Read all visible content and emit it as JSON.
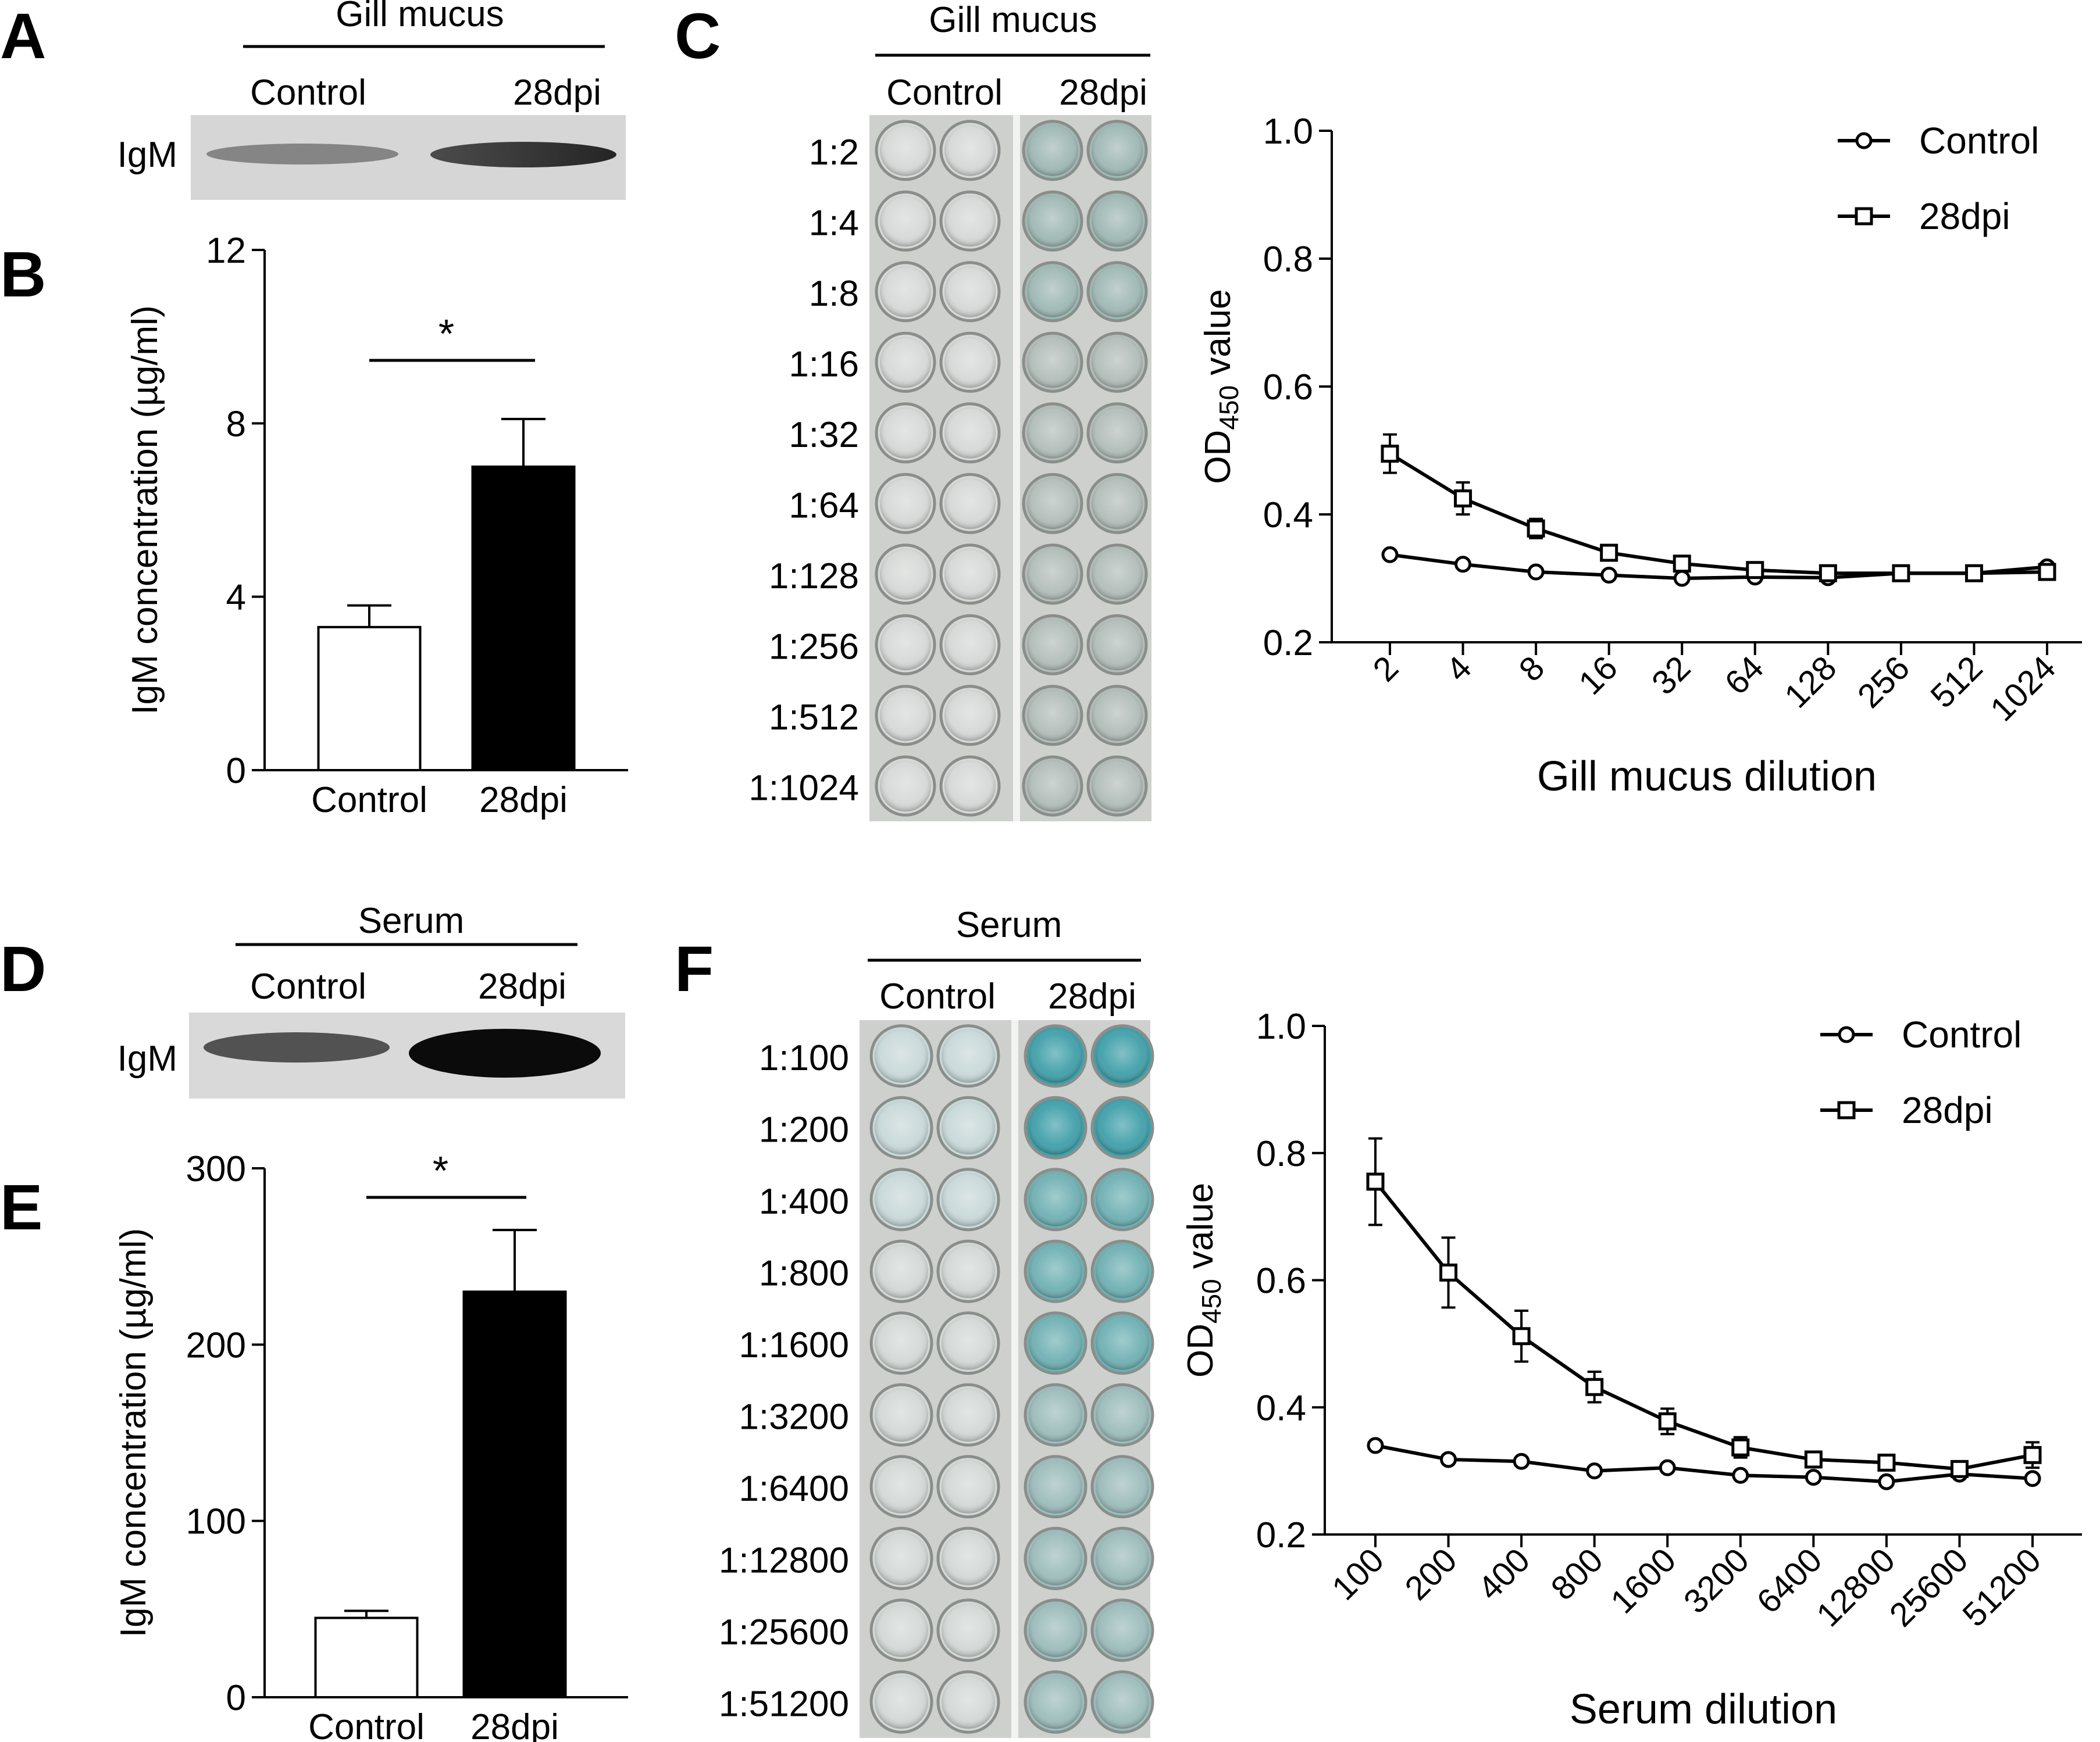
{
  "colors": {
    "ink": "#000000",
    "control_bar": "#ffffff",
    "dpi_bar": "#000000",
    "blot_bg": "#d9d9d9",
    "plate_bg": "#cfd2cf",
    "well_clear": "#dadcda",
    "well_blue_strong": "#3a9ea8",
    "well_blue_light": "#8fb9b9"
  },
  "panels": {
    "A": {
      "letter": "A",
      "header": "Gill mucus",
      "col_labels": [
        "Control",
        "28dpi"
      ],
      "row_label": "IgM"
    },
    "D": {
      "letter": "D",
      "header": "Serum",
      "col_labels": [
        "Control",
        "28dpi"
      ],
      "row_label": "IgM"
    },
    "C_plate": {
      "letter": "C",
      "header": "Gill mucus",
      "col_labels": [
        "Control",
        "28dpi"
      ],
      "row_labels": [
        "1:2",
        "1:4",
        "1:8",
        "1:16",
        "1:32",
        "1:64",
        "1:128",
        "1:256",
        "1:512",
        "1:1024"
      ],
      "icon": "elisa-plate-icon"
    },
    "F_plate": {
      "letter": "F",
      "header": "Serum",
      "col_labels": [
        "Control",
        "28dpi"
      ],
      "row_labels": [
        "1:100",
        "1:200",
        "1:400",
        "1:800",
        "1:1600",
        "1:3200",
        "1:6400",
        "1:12800",
        "1:25600",
        "1:51200"
      ],
      "icon": "elisa-plate-icon"
    }
  },
  "chart_data": [
    {
      "id": "B",
      "letter": "B",
      "type": "bar",
      "ylabel": "IgM concentration (µg/ml)",
      "categories": [
        "Control",
        "28dpi"
      ],
      "values": [
        3.3,
        7.0
      ],
      "errors": [
        0.5,
        1.1
      ],
      "ylim": [
        0,
        12
      ],
      "yticks": [
        0,
        4,
        8,
        12
      ],
      "ytick_labels": [
        "0",
        "4",
        "8",
        "12"
      ],
      "significance": "*"
    },
    {
      "id": "E",
      "letter": "E",
      "type": "bar",
      "ylabel": "IgM concentration (µg/ml)",
      "categories": [
        "Control",
        "28dpi"
      ],
      "values": [
        45,
        230
      ],
      "errors": [
        4,
        35
      ],
      "ylim": [
        0,
        300
      ],
      "yticks": [
        0,
        100,
        200,
        300
      ],
      "ytick_labels": [
        "0",
        "100",
        "200",
        "300"
      ],
      "significance": "*"
    },
    {
      "id": "C",
      "type": "line",
      "xlabel": "Gill mucus dilution",
      "ylabel_main": "OD",
      "ylabel_sub": "450",
      "ylabel_tail": " value",
      "categories": [
        "2",
        "4",
        "8",
        "16",
        "32",
        "64",
        "128",
        "256",
        "512",
        "1024"
      ],
      "ylim": [
        0.2,
        1.0
      ],
      "yticks": [
        0.2,
        0.4,
        0.6,
        0.8,
        1.0
      ],
      "ytick_labels": [
        "0.2",
        "0.4",
        "0.6",
        "0.8",
        "1.0"
      ],
      "legend": "top-right",
      "series": [
        {
          "name": "Control",
          "marker": "circle",
          "values": [
            0.337,
            0.322,
            0.31,
            0.305,
            0.3,
            0.302,
            0.301,
            0.308,
            0.308,
            0.318
          ],
          "errors": [
            0.005,
            0.005,
            0.004,
            0.004,
            0.004,
            0.004,
            0.004,
            0.004,
            0.005,
            0.005
          ]
        },
        {
          "name": "28dpi",
          "marker": "square",
          "values": [
            0.495,
            0.425,
            0.378,
            0.34,
            0.323,
            0.313,
            0.308,
            0.308,
            0.308,
            0.31
          ],
          "errors": [
            0.03,
            0.025,
            0.015,
            0.01,
            0.008,
            0.006,
            0.005,
            0.005,
            0.005,
            0.006
          ]
        }
      ]
    },
    {
      "id": "F",
      "type": "line",
      "xlabel": "Serum dilution",
      "ylabel_main": "OD",
      "ylabel_sub": "450",
      "ylabel_tail": " value",
      "categories": [
        "100",
        "200",
        "400",
        "800",
        "1600",
        "3200",
        "6400",
        "12800",
        "25600",
        "51200"
      ],
      "ylim": [
        0.2,
        1.0
      ],
      "yticks": [
        0.2,
        0.4,
        0.6,
        0.8,
        1.0
      ],
      "ytick_labels": [
        "0.2",
        "0.4",
        "0.6",
        "0.8",
        "1.0"
      ],
      "legend": "top-right",
      "series": [
        {
          "name": "Control",
          "marker": "circle",
          "values": [
            0.34,
            0.318,
            0.315,
            0.3,
            0.305,
            0.293,
            0.29,
            0.283,
            0.295,
            0.288
          ],
          "errors": [
            0.005,
            0.005,
            0.005,
            0.004,
            0.004,
            0.004,
            0.004,
            0.004,
            0.004,
            0.005
          ]
        },
        {
          "name": "28dpi",
          "marker": "square",
          "values": [
            0.755,
            0.612,
            0.512,
            0.432,
            0.378,
            0.337,
            0.318,
            0.313,
            0.303,
            0.325
          ],
          "errors": [
            0.068,
            0.055,
            0.04,
            0.024,
            0.02,
            0.016,
            0.012,
            0.012,
            0.012,
            0.02
          ]
        }
      ]
    }
  ]
}
